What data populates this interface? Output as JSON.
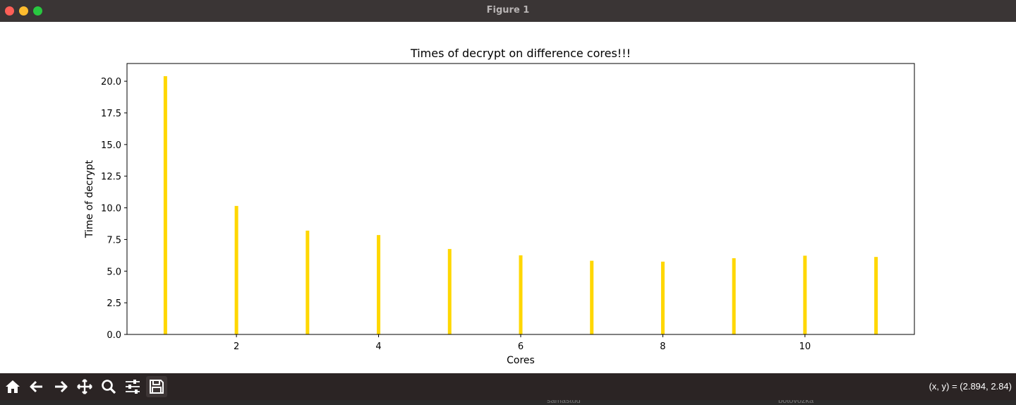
{
  "window": {
    "title": "Figure 1"
  },
  "toolbar": {
    "buttons": [
      {
        "name": "home-button",
        "icon": "home-icon"
      },
      {
        "name": "back-button",
        "icon": "arrow-left-icon"
      },
      {
        "name": "forward-button",
        "icon": "arrow-right-icon"
      },
      {
        "name": "pan-button",
        "icon": "move-icon"
      },
      {
        "name": "zoom-button",
        "icon": "magnifier-icon"
      },
      {
        "name": "configure-subplots-button",
        "icon": "sliders-icon"
      },
      {
        "name": "save-button",
        "icon": "floppy-disk-icon"
      }
    ],
    "coords": "(x, y) = (2.894, 2.84)"
  },
  "background_text": {
    "left": "samastud",
    "right": "botovozka"
  },
  "chart_data": {
    "type": "bar",
    "title": "Times of decrypt on difference cores!!!",
    "xlabel": "Cores",
    "ylabel": "Time of decrypt",
    "x": [
      1,
      2,
      3,
      4,
      5,
      6,
      7,
      8,
      9,
      10,
      11
    ],
    "values": [
      20.4,
      10.15,
      8.2,
      7.85,
      6.75,
      6.25,
      5.82,
      5.75,
      6.02,
      6.22,
      6.12
    ],
    "xlim": [
      0.46,
      11.54
    ],
    "ylim": [
      0,
      21.4
    ],
    "xticks": [
      2,
      4,
      6,
      8,
      10
    ],
    "xtick_labels": [
      "2",
      "4",
      "6",
      "8",
      "10"
    ],
    "yticks": [
      0,
      2.5,
      5,
      7.5,
      10,
      12.5,
      15,
      17.5,
      20
    ],
    "ytick_labels": [
      "0.0",
      "2.5",
      "5.0",
      "7.5",
      "10.0",
      "12.5",
      "15.0",
      "17.5",
      "20.0"
    ],
    "bar_color": "#ffd700",
    "grid": false
  }
}
